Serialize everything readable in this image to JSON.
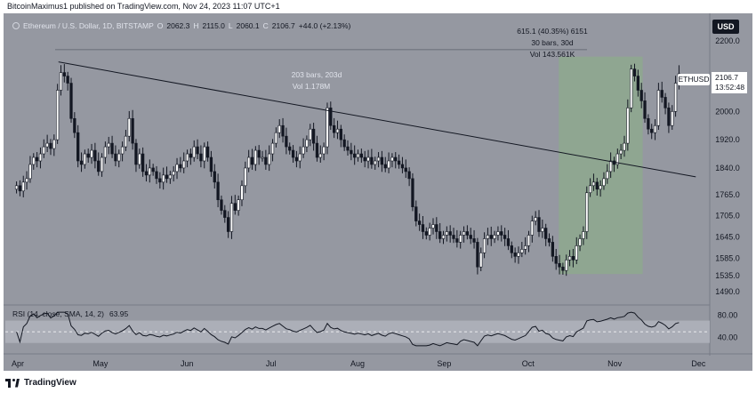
{
  "header": {
    "publisher_line": "BitcoinMaximus1 published on TradingView.com, Nov 24, 2023 11:07 UTC+1"
  },
  "legend": {
    "symbol": "Ethereum / U.S. Dollar, 1D, BITSTAMP",
    "o_label": "O",
    "o_value": "2062.3",
    "h_label": "H",
    "h_value": "2115.0",
    "l_label": "L",
    "l_value": "2060.1",
    "c_label": "C",
    "c_value": "2106.7",
    "change": "+44.0 (+2.13%)"
  },
  "rsi_legend": {
    "title": "RSI (14, close, SMA, 14, 2)",
    "value": "63.95"
  },
  "currency": "USD",
  "symbol_badge": "ETHUSD",
  "last_price": "2106.7",
  "countdown": "13:52:48",
  "footer": {
    "brand": "TradingView"
  },
  "annotations": {
    "range_top": "615.1 (40.35%) 6151",
    "range_bars": "30 bars, 30d",
    "range_vol": "Vol 143.561K",
    "trend_bars": "203 bars, 203d",
    "trend_vol": "Vol 1.178M"
  },
  "colors": {
    "background": "#9598a1",
    "bull_candle": "#ffffff",
    "bear_candle": "#131722",
    "range_box": "#8ea88e",
    "rsi_band": "#b2b5be"
  },
  "chart_data": {
    "type": "candlestick",
    "symbol": "ETHUSD",
    "exchange": "BITSTAMP",
    "timeframe": "1D",
    "y_ticks": [
      "2200.0",
      "2000.0",
      "1920.0",
      "1840.0",
      "1765.0",
      "1705.0",
      "1645.0",
      "1585.0",
      "1535.0",
      "1490.0"
    ],
    "y_tick_values": [
      2200,
      2000,
      1920,
      1840,
      1765,
      1705,
      1645,
      1585,
      1535,
      1490
    ],
    "x_ticks": [
      "Apr",
      "May",
      "Jun",
      "Jul",
      "Aug",
      "Sep",
      "Oct",
      "Nov",
      "Dec"
    ],
    "ylim": [
      1460,
      2270
    ],
    "trendline": {
      "from": {
        "date": "2023-04-16",
        "price": 2140
      },
      "to": {
        "date": "2023-11-30",
        "price": 1815
      }
    },
    "range_measure": {
      "from_date": "2023-10-12",
      "to_date": "2023-11-11",
      "low": 1540,
      "high": 2155,
      "change": 615.1,
      "pct": 40.35,
      "bars": 30
    },
    "horizontal_level": 2175,
    "rsi": {
      "ylim": [
        20,
        90
      ],
      "upper": 70,
      "lower": 30,
      "mid": 50,
      "ticks": [
        "80.00",
        "40.00"
      ],
      "tick_values": [
        80,
        40
      ],
      "last": 63.95
    },
    "candles_close": [
      1790,
      1775,
      1800,
      1810,
      1850,
      1870,
      1860,
      1880,
      1900,
      1910,
      1895,
      1920,
      2060,
      2110,
      2100,
      2080,
      1980,
      1940,
      1860,
      1850,
      1880,
      1870,
      1890,
      1860,
      1830,
      1870,
      1900,
      1910,
      1880,
      1860,
      1880,
      1900,
      1930,
      1980,
      1910,
      1850,
      1880,
      1830,
      1820,
      1840,
      1830,
      1810,
      1800,
      1820,
      1810,
      1820,
      1830,
      1850,
      1840,
      1860,
      1880,
      1870,
      1900,
      1880,
      1860,
      1900,
      1870,
      1830,
      1800,
      1750,
      1720,
      1700,
      1660,
      1740,
      1720,
      1750,
      1790,
      1840,
      1870,
      1850,
      1890,
      1870,
      1870,
      1850,
      1880,
      1910,
      1940,
      1960,
      1930,
      1900,
      1890,
      1870,
      1860,
      1880,
      1900,
      1920,
      1950,
      1910,
      1870,
      1880,
      1900,
      2010,
      1960,
      1940,
      1950,
      1920,
      1900,
      1890,
      1880,
      1870,
      1880,
      1870,
      1860,
      1870,
      1850,
      1860,
      1870,
      1850,
      1840,
      1860,
      1870,
      1860,
      1850,
      1840,
      1830,
      1810,
      1730,
      1690,
      1680,
      1660,
      1650,
      1670,
      1680,
      1660,
      1640,
      1650,
      1660,
      1650,
      1640,
      1630,
      1650,
      1660,
      1650,
      1640,
      1630,
      1560,
      1600,
      1640,
      1650,
      1640,
      1650,
      1660,
      1650,
      1640,
      1620,
      1600,
      1590,
      1600,
      1610,
      1620,
      1650,
      1690,
      1700,
      1660,
      1670,
      1640,
      1630,
      1590,
      1570,
      1560,
      1550,
      1580,
      1590,
      1580,
      1620,
      1640,
      1660,
      1770,
      1790,
      1800,
      1780,
      1790,
      1810,
      1830,
      1860,
      1850,
      1880,
      1890,
      1910,
      2010,
      2120,
      2100,
      2060,
      2030,
      1980,
      1950,
      1940,
      1960,
      2060,
      2040,
      2010,
      1960,
      2000,
      2080,
      2106.7
    ]
  }
}
